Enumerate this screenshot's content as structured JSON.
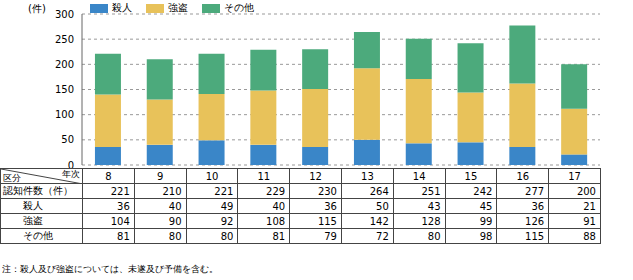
{
  "chart_data": {
    "type": "bar",
    "stacked": true,
    "y_label": "(件)",
    "categories": [
      "8",
      "9",
      "10",
      "11",
      "12",
      "13",
      "14",
      "15",
      "16",
      "17"
    ],
    "series": [
      {
        "name": "殺人",
        "color": "#3a86c8",
        "values": [
          36,
          40,
          49,
          40,
          36,
          50,
          43,
          45,
          36,
          21
        ]
      },
      {
        "name": "強盗",
        "color": "#e8c25a",
        "values": [
          104,
          90,
          92,
          108,
          115,
          142,
          128,
          99,
          126,
          91
        ]
      },
      {
        "name": "その他",
        "color": "#4caa7c",
        "values": [
          81,
          80,
          80,
          81,
          79,
          72,
          80,
          98,
          115,
          88
        ]
      }
    ],
    "ylim": [
      0,
      300
    ],
    "yticks": [
      0,
      50,
      100,
      150,
      200,
      250,
      300
    ],
    "grid": true,
    "legend": "top left",
    "tick_labels": "y"
  },
  "table": {
    "corner_row": "区分",
    "corner_col": "年次",
    "total_label": "認知件数（件）",
    "totals": [
      221,
      210,
      221,
      229,
      230,
      264,
      251,
      242,
      277,
      200
    ]
  },
  "note": "注：殺人及び強盗については、未遂及び予備を含む。"
}
